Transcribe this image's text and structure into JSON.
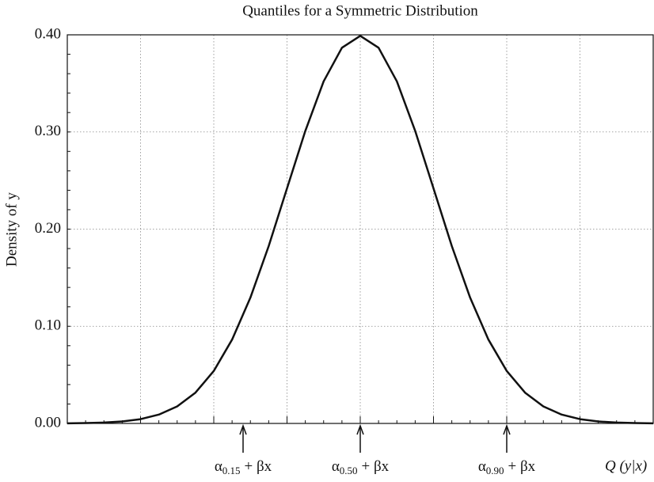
{
  "chart_data": {
    "type": "line",
    "title": "Quantiles for a Symmetric Distribution",
    "x_label": "Q (y|x)",
    "y_label": "Density of y",
    "x": [
      -4,
      -3.75,
      -3.5,
      -3.25,
      -3,
      -2.75,
      -2.5,
      -2.25,
      -2,
      -1.75,
      -1.5,
      -1.25,
      -1,
      -0.75,
      -0.5,
      -0.25,
      0,
      0.25,
      0.5,
      0.75,
      1,
      1.25,
      1.5,
      1.75,
      2,
      2.25,
      2.5,
      2.75,
      3,
      3.25,
      3.5,
      3.75,
      4
    ],
    "series": [
      {
        "color": "#111111",
        "values": [
          0.0001,
          0.0004,
          0.0009,
          0.002,
          0.0044,
          0.0091,
          0.0175,
          0.0317,
          0.054,
          0.0863,
          0.1295,
          0.1826,
          0.242,
          0.3011,
          0.3521,
          0.3867,
          0.3989,
          0.3867,
          0.3521,
          0.3011,
          0.242,
          0.1826,
          0.1295,
          0.0863,
          0.054,
          0.0317,
          0.0175,
          0.0091,
          0.0044,
          0.002,
          0.0009,
          0.0004,
          0.0001
        ]
      }
    ],
    "xlim": [
      -4,
      4
    ],
    "xticks": [
      -3,
      -2,
      -1,
      0,
      1,
      2,
      3
    ],
    "ylim": [
      0,
      0.4
    ],
    "yticks": [
      {
        "value": 0,
        "label": "0.00"
      },
      {
        "value": 0.1,
        "label": "0.10"
      },
      {
        "value": 0.2,
        "label": "0.20"
      },
      {
        "value": 0.3,
        "label": "0.30"
      },
      {
        "value": 0.4,
        "label": "0.40"
      }
    ],
    "grid": true,
    "annotations": [
      {
        "x": -1.6,
        "symbol": "α",
        "subscript": "0.15",
        "suffix": "+ βx"
      },
      {
        "x": 0,
        "symbol": "α",
        "subscript": "0.50",
        "suffix": "+ βx"
      },
      {
        "x": 2,
        "symbol": "α",
        "subscript": "0.90",
        "suffix": "+ βx"
      }
    ]
  }
}
